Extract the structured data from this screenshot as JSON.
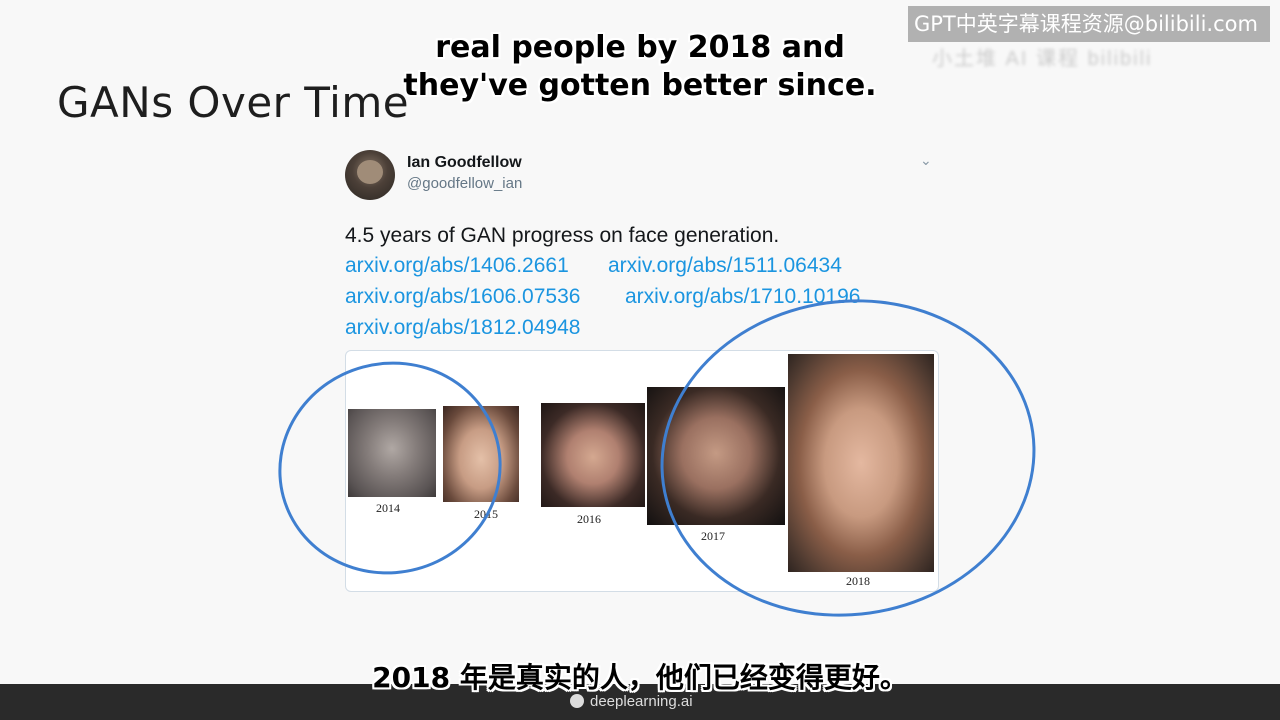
{
  "slide": {
    "title": "GANs Over Time"
  },
  "watermark": {
    "text": "GPT中英字幕课程资源@bilibili.com",
    "blurred": "小土堆 AI 课程 bilibili"
  },
  "subtitles": {
    "en_line1": "real people by 2018 and",
    "en_line2": "they've gotten better since.",
    "cn": "2018 年是真实的人，他们已经变得更好。"
  },
  "tweet": {
    "name": "Ian Goodfellow",
    "handle": "@goodfellow_ian",
    "text": "4.5 years of GAN progress on face generation.",
    "links": [
      "arxiv.org/abs/1406.2661",
      "arxiv.org/abs/1511.06434",
      "arxiv.org/abs/1606.07536",
      "arxiv.org/abs/1710.10196",
      "arxiv.org/abs/1812.04948"
    ],
    "years": [
      "2014",
      "2015",
      "2016",
      "2017",
      "2018"
    ]
  },
  "footer": {
    "brand": "deeplearning.ai"
  },
  "colors": {
    "link": "#1b95e0",
    "annotation": "#3f7fd0"
  },
  "icons": {
    "chevron": "chevron-down-icon",
    "brand": "deeplearning-logo-icon"
  }
}
